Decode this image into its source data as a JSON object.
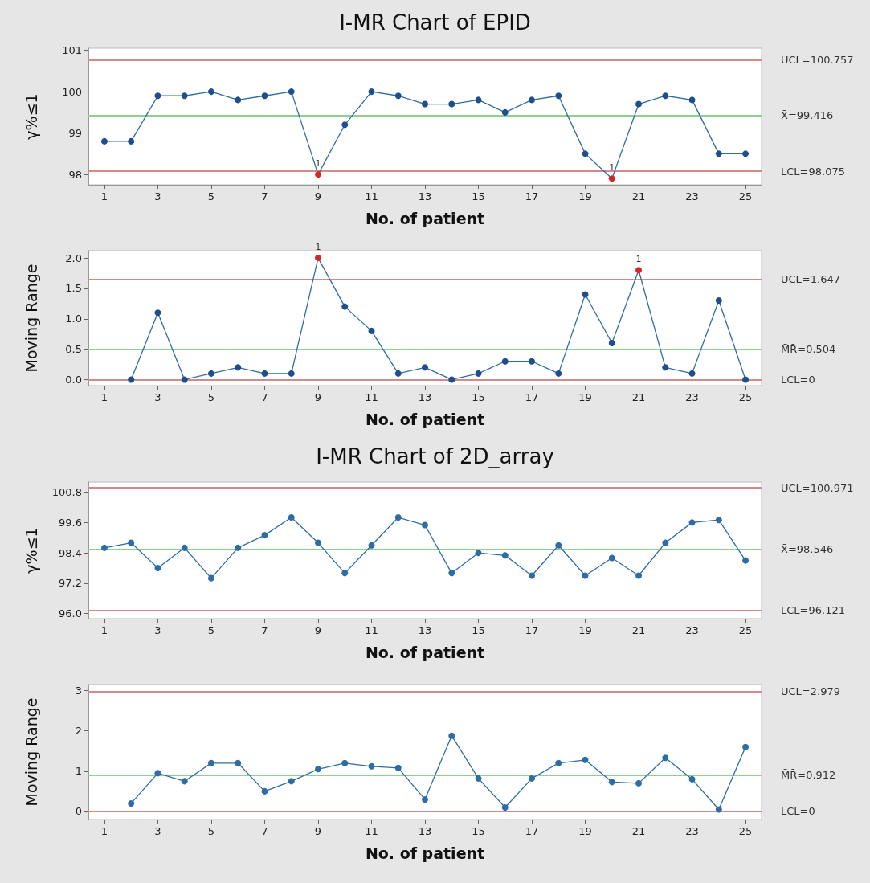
{
  "chart_data": [
    {
      "type": "line",
      "title": "I-MR Chart of EPID",
      "xlabel": "No. of patient",
      "ylabel": "γ%≤1",
      "x": [
        1,
        2,
        3,
        4,
        5,
        6,
        7,
        8,
        9,
        10,
        11,
        12,
        13,
        14,
        15,
        16,
        17,
        18,
        19,
        20,
        21,
        22,
        23,
        24,
        25
      ],
      "xlim": [
        0.4,
        25.6
      ],
      "xticks": [
        1,
        3,
        5,
        7,
        9,
        11,
        13,
        15,
        17,
        19,
        21,
        23,
        25
      ],
      "ylim": [
        97.75,
        101.05
      ],
      "yticks": [
        98,
        99,
        100,
        101
      ],
      "marker": "circle",
      "grid": false,
      "series": [
        {
          "color": "#2e6ca4",
          "values": [
            98.8,
            98.8,
            99.9,
            99.9,
            100.0,
            99.8,
            99.9,
            100.0,
            98.0,
            99.2,
            100.0,
            99.9,
            99.7,
            99.7,
            99.8,
            99.5,
            99.8,
            99.9,
            98.5,
            97.9,
            99.7,
            99.9,
            99.8,
            98.5,
            98.5
          ],
          "colors": [
            "#1f4e8c",
            "#1f4e8c",
            "#1f4e8c",
            "#1f4e8c",
            "#1f4e8c",
            "#1f4e8c",
            "#1f4e8c",
            "#1f4e8c",
            "#d62728",
            "#1f4e8c",
            "#1f4e8c",
            "#1f4e8c",
            "#1f4e8c",
            "#1f4e8c",
            "#1f4e8c",
            "#1f4e8c",
            "#1f4e8c",
            "#1f4e8c",
            "#1f4e8c",
            "#d62728",
            "#1f4e8c",
            "#1f4e8c",
            "#1f4e8c",
            "#1f4e8c",
            "#1f4e8c"
          ]
        }
      ],
      "ref_lines": [
        {
          "axis": "y",
          "value": 100.757,
          "label": "UCL=100.757",
          "color": "#d48a8a"
        },
        {
          "axis": "y",
          "value": 99.416,
          "label": "X̄=99.416",
          "color": "#8fcf8f"
        },
        {
          "axis": "y",
          "value": 98.075,
          "label": "LCL=98.075",
          "color": "#d48a8a"
        }
      ],
      "annotations": [
        {
          "text": "1",
          "x": 9,
          "y": 98.0
        },
        {
          "text": "1",
          "x": 20,
          "y": 97.9
        }
      ]
    },
    {
      "type": "line",
      "xlabel": "No. of patient",
      "ylabel": "Moving Range",
      "xlim": [
        0.4,
        25.6
      ],
      "xticks": [
        1,
        3,
        5,
        7,
        9,
        11,
        13,
        15,
        17,
        19,
        21,
        23,
        25
      ],
      "ylim": [
        -0.1,
        2.12
      ],
      "yticks": [
        {
          "value": 0,
          "label": "0.0"
        },
        0.5,
        {
          "value": 1,
          "label": "1.0"
        },
        1.5,
        {
          "value": 2,
          "label": "2.0"
        }
      ],
      "marker": "circle",
      "grid": false,
      "series": [
        {
          "color": "#2e6ca4",
          "x": [
            2,
            3,
            4,
            5,
            6,
            7,
            8,
            9,
            10,
            11,
            12,
            13,
            14,
            15,
            16,
            17,
            18,
            19,
            20,
            21,
            22,
            23,
            24,
            25
          ],
          "values": [
            0,
            1.1,
            0,
            0.1,
            0.2,
            0.1,
            0.1,
            2.0,
            1.2,
            0.8,
            0.1,
            0.2,
            0,
            0.1,
            0.3,
            0.3,
            0.1,
            1.4,
            0.6,
            1.8,
            0.2,
            0.1,
            1.3,
            0
          ],
          "colors": [
            "#1f4e8c",
            "#1f4e8c",
            "#1f4e8c",
            "#1f4e8c",
            "#1f4e8c",
            "#1f4e8c",
            "#1f4e8c",
            "#d62728",
            "#1f4e8c",
            "#1f4e8c",
            "#1f4e8c",
            "#1f4e8c",
            "#1f4e8c",
            "#1f4e8c",
            "#1f4e8c",
            "#1f4e8c",
            "#1f4e8c",
            "#1f4e8c",
            "#1f4e8c",
            "#d62728",
            "#1f4e8c",
            "#1f4e8c",
            "#1f4e8c",
            "#1f4e8c"
          ]
        }
      ],
      "ref_lines": [
        {
          "axis": "y",
          "value": 1.647,
          "label": "UCL=1.647",
          "color": "#d48a8a"
        },
        {
          "axis": "y",
          "value": 0.504,
          "label": "M̄R̄=0.504",
          "color": "#8fcf8f"
        },
        {
          "axis": "y",
          "value": 0,
          "label": "LCL=0",
          "color": "#d48a8a"
        }
      ],
      "annotations": [
        {
          "text": "1",
          "x": 9,
          "y": 2.0
        },
        {
          "text": "1",
          "x": 21,
          "y": 1.8
        }
      ]
    },
    {
      "type": "line",
      "title": "I-MR Chart of 2D_array",
      "xlabel": "No. of patient",
      "ylabel": "γ%≤1",
      "x": [
        1,
        2,
        3,
        4,
        5,
        6,
        7,
        8,
        9,
        10,
        11,
        12,
        13,
        14,
        15,
        16,
        17,
        18,
        19,
        20,
        21,
        22,
        23,
        24,
        25
      ],
      "xlim": [
        0.4,
        25.6
      ],
      "xticks": [
        1,
        3,
        5,
        7,
        9,
        11,
        13,
        15,
        17,
        19,
        21,
        23,
        25
      ],
      "ylim": [
        95.8,
        101.2
      ],
      "yticks": [
        {
          "value": 96,
          "label": "96.0"
        },
        97.2,
        98.4,
        99.6,
        100.8
      ],
      "marker": "circle",
      "grid": false,
      "series": [
        {
          "color": "#2e6ca4",
          "values": [
            98.6,
            98.8,
            97.8,
            98.6,
            97.4,
            98.6,
            99.1,
            99.8,
            98.8,
            97.6,
            98.7,
            99.8,
            99.5,
            97.6,
            98.4,
            98.3,
            97.5,
            98.7,
            97.5,
            98.2,
            97.5,
            98.8,
            99.6,
            99.7,
            98.1
          ]
        }
      ],
      "ref_lines": [
        {
          "axis": "y",
          "value": 100.971,
          "label": "UCL=100.971",
          "color": "#d48a8a"
        },
        {
          "axis": "y",
          "value": 98.546,
          "label": "X̄=98.546",
          "color": "#8fcf8f"
        },
        {
          "axis": "y",
          "value": 96.121,
          "label": "LCL=96.121",
          "color": "#d48a8a"
        }
      ]
    },
    {
      "type": "line",
      "xlabel": "No. of patient",
      "ylabel": "Moving Range",
      "xlim": [
        0.4,
        25.6
      ],
      "xticks": [
        1,
        3,
        5,
        7,
        9,
        11,
        13,
        15,
        17,
        19,
        21,
        23,
        25
      ],
      "ylim": [
        -0.2,
        3.15
      ],
      "yticks": [
        0,
        1,
        2,
        3
      ],
      "marker": "circle",
      "grid": false,
      "series": [
        {
          "color": "#2e6ca4",
          "x": [
            2,
            3,
            4,
            5,
            6,
            7,
            8,
            9,
            10,
            11,
            12,
            13,
            14,
            15,
            16,
            17,
            18,
            19,
            20,
            21,
            22,
            23,
            24,
            25
          ],
          "values": [
            0.2,
            0.95,
            0.75,
            1.2,
            1.2,
            0.5,
            0.75,
            1.05,
            1.2,
            1.12,
            1.08,
            0.3,
            1.88,
            0.82,
            0.1,
            0.82,
            1.2,
            1.28,
            0.73,
            0.7,
            1.33,
            0.8,
            0.05,
            1.6
          ]
        }
      ],
      "ref_lines": [
        {
          "axis": "y",
          "value": 2.979,
          "label": "UCL=2.979",
          "color": "#d48a8a"
        },
        {
          "axis": "y",
          "value": 0.912,
          "label": "M̄R̄=0.912",
          "color": "#8fcf8f"
        },
        {
          "axis": "y",
          "value": 0,
          "label": "LCL=0",
          "color": "#d48a8a"
        }
      ]
    }
  ]
}
